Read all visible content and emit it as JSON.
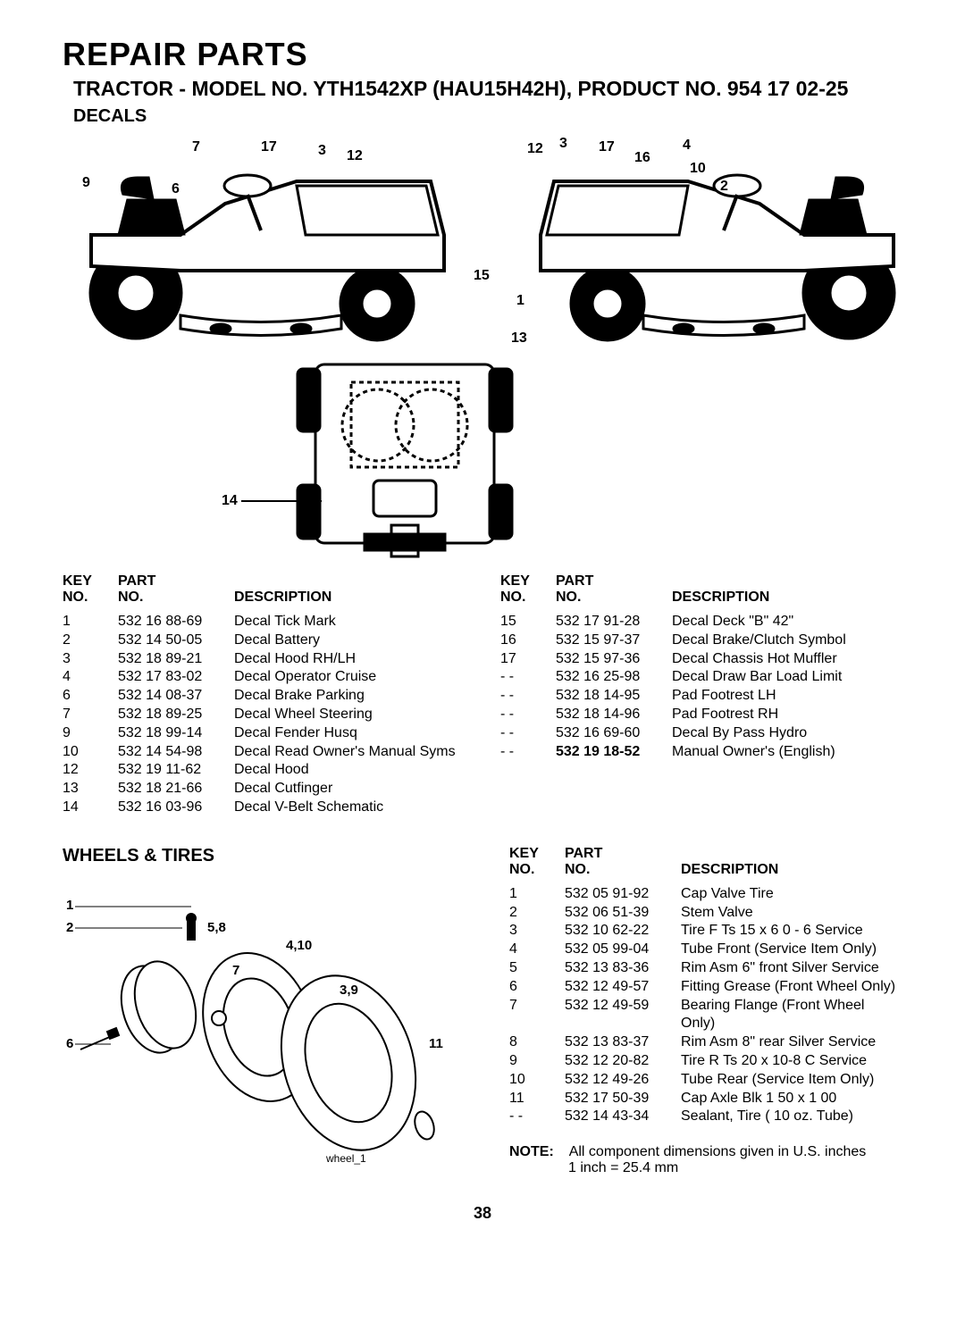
{
  "page": {
    "title": "REPAIR PARTS",
    "subtitle": "TRACTOR - MODEL NO. YTH1542XP (HAU15H42H), PRODUCT NO. 954 17 02-25",
    "section1": "DECALS",
    "section2": "WHEELS & TIRES",
    "pageNumber": "38",
    "note_label": "NOTE:",
    "note_text": "All component dimensions given in U.S. inches",
    "note_conv": "1 inch = 25.4 mm",
    "wheel_caption": "wheel_1"
  },
  "headers": {
    "key1": "KEY",
    "key2": "NO.",
    "part1": "PART",
    "part2": "NO.",
    "desc": "DESCRIPTION"
  },
  "decals_callouts": {
    "c9": "9",
    "c6": "6",
    "c7": "7",
    "c17a": "17",
    "c3a": "3",
    "c12a": "12",
    "c12b": "12",
    "c3b": "3",
    "c17b": "17",
    "c4": "4",
    "c16": "16",
    "c10": "10",
    "c2": "2",
    "c15": "15",
    "c1": "1",
    "c13": "13",
    "c14": "14"
  },
  "wheels_callouts": {
    "w1": "1",
    "w2": "2",
    "w58": "5,8",
    "w410": "4,10",
    "w7": "7",
    "w39": "3,9",
    "w6": "6",
    "w11": "11"
  },
  "decals_left": [
    {
      "key": "1",
      "part": "532 16 88-69",
      "desc": "Decal Tick Mark"
    },
    {
      "key": "2",
      "part": "532 14 50-05",
      "desc": "Decal Battery"
    },
    {
      "key": "3",
      "part": "532 18 89-21",
      "desc": "Decal Hood RH/LH"
    },
    {
      "key": "4",
      "part": "532 17 83-02",
      "desc": "Decal Operator Cruise"
    },
    {
      "key": "6",
      "part": "532 14 08-37",
      "desc": "Decal Brake Parking"
    },
    {
      "key": "7",
      "part": "532 18 89-25",
      "desc": "Decal Wheel Steering"
    },
    {
      "key": "9",
      "part": "532 18 99-14",
      "desc": "Decal Fender Husq"
    },
    {
      "key": "10",
      "part": "532 14 54-98",
      "desc": "Decal Read Owner's Manual Syms"
    },
    {
      "key": "12",
      "part": "532 19 11-62",
      "desc": "Decal Hood"
    },
    {
      "key": "13",
      "part": "532 18 21-66",
      "desc": "Decal Cutfinger"
    },
    {
      "key": "14",
      "part": "532 16 03-96",
      "desc": "Decal V-Belt  Schematic"
    }
  ],
  "decals_right": [
    {
      "key": "15",
      "part": "532 17 91-28",
      "desc": "Decal Deck \"B\" 42\"",
      "bold": false
    },
    {
      "key": "16",
      "part": "532 15 97-37",
      "desc": "Decal Brake/Clutch Symbol",
      "bold": false
    },
    {
      "key": "17",
      "part": "532 15 97-36",
      "desc": "Decal Chassis Hot Muffler",
      "bold": false
    },
    {
      "key": "- -",
      "part": "532 16 25-98",
      "desc": "Decal Draw Bar Load Limit",
      "bold": false
    },
    {
      "key": "- -",
      "part": "532 18 14-95",
      "desc": "Pad Footrest LH",
      "bold": false
    },
    {
      "key": "- -",
      "part": "532 18 14-96",
      "desc": "Pad Footrest RH",
      "bold": false
    },
    {
      "key": "- -",
      "part": "532 16 69-60",
      "desc": "Decal By Pass Hydro",
      "bold": false
    },
    {
      "key": "- -",
      "part": "532 19 18-52",
      "desc": "Manual Owner's (English)",
      "bold": true
    }
  ],
  "wheels_rows": [
    {
      "key": "1",
      "part": "532 05 91-92",
      "desc": "Cap Valve Tire"
    },
    {
      "key": "2",
      "part": "532 06 51-39",
      "desc": "Stem Valve"
    },
    {
      "key": "3",
      "part": "532 10 62-22",
      "desc": "Tire F Ts 15 x 6 0 - 6 Service"
    },
    {
      "key": "4",
      "part": "532 05 99-04",
      "desc": "Tube Front (Service Item Only)"
    },
    {
      "key": "5",
      "part": "532 13 83-36",
      "desc": "Rim Asm 6\" front Silver Service"
    },
    {
      "key": "6",
      "part": "532 12 49-57",
      "desc": "Fitting Grease (Front Wheel Only)"
    },
    {
      "key": "7",
      "part": "532 12 49-59",
      "desc": "Bearing Flange (Front Wheel Only)"
    },
    {
      "key": "8",
      "part": "532 13 83-37",
      "desc": "Rim Asm 8\" rear Silver Service"
    },
    {
      "key": "9",
      "part": "532 12 20-82",
      "desc": "Tire R Ts 20 x 10-8 C Service"
    },
    {
      "key": "10",
      "part": "532 12 49-26",
      "desc": "Tube Rear (Service Item Only)"
    },
    {
      "key": "11",
      "part": "532 17 50-39",
      "desc": "Cap Axle Blk 1 50 x 1 00"
    },
    {
      "key": "- -",
      "part": "532 14 43-34",
      "desc": "Sealant, Tire ( 10 oz. Tube)"
    }
  ]
}
